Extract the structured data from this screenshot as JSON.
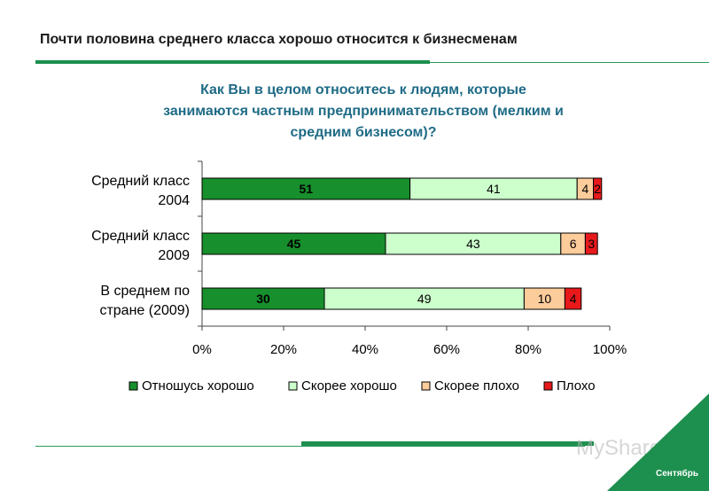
{
  "slide": {
    "title": "Почти половина среднего класса хорошо относится к бизнесменам",
    "question_lines": [
      "Как Вы в целом относитесь к людям, которые",
      "занимаются частным предпринимательством (мелким и",
      "средним бизнесом)?"
    ],
    "corner_label": "Сентябрь",
    "watermark": "MyShared"
  },
  "colors": {
    "good": "#178f2c",
    "rather_good": "#ccffcc",
    "rather_bad": "#fdcc9b",
    "bad": "#e8191b",
    "accent": "#1d8f4e",
    "question_text": "#1f6b86"
  },
  "chart_data": {
    "type": "bar",
    "orientation": "horizontal",
    "stacked": true,
    "categories": [
      [
        "Средний класс",
        "2004"
      ],
      [
        "Средний класс",
        "2009"
      ],
      [
        "В среднем по",
        "стране (2009)"
      ]
    ],
    "series": [
      {
        "name": "Отношусь хорошо",
        "values": [
          51,
          45,
          30
        ]
      },
      {
        "name": "Скорее хорошо",
        "values": [
          41,
          43,
          49
        ]
      },
      {
        "name": "Скорее плохо",
        "values": [
          4,
          6,
          10
        ]
      },
      {
        "name": "Плохо",
        "values": [
          2,
          3,
          4
        ]
      }
    ],
    "xlim": [
      0,
      100
    ],
    "xticks": [
      "0%",
      "20%",
      "40%",
      "60%",
      "80%",
      "100%"
    ],
    "legend_position": "bottom",
    "grid": false
  }
}
